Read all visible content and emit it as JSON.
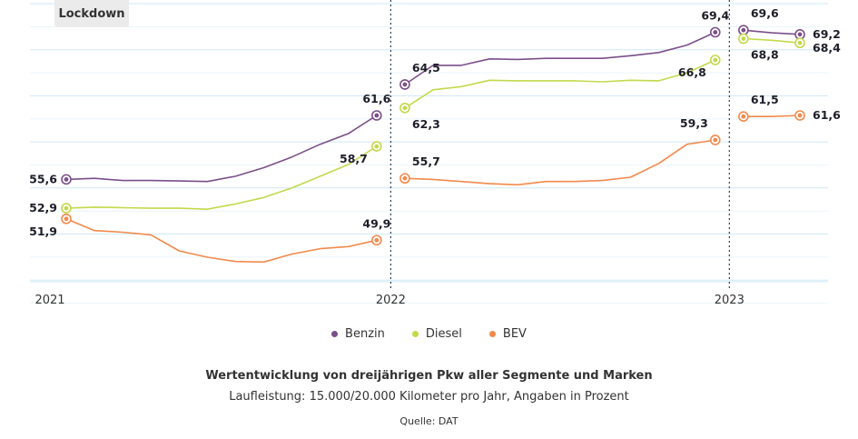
{
  "annotation": {
    "lockdown": "Lockdown"
  },
  "chart_data": {
    "type": "line",
    "title": "Wertentwicklung von dreijährigen Pkw aller Segmente und Marken",
    "subtitle": "Laufleistung: 15.000/20.000 Kilometer pro Jahr, Angaben in Prozent",
    "source": "Quelle: DAT",
    "x_ticks": [
      {
        "label": "2021",
        "x": 0
      },
      {
        "label": "2022",
        "x": 12
      },
      {
        "label": "2023",
        "x": 24
      }
    ],
    "ylim": [
      46,
      72
    ],
    "year_dividers": [
      12,
      24
    ],
    "series": [
      {
        "name": "Benzin",
        "color": "#7b4f8a",
        "segments": [
          {
            "x": [
              0,
              1,
              2,
              3,
              4,
              5,
              6,
              7,
              8,
              9,
              10,
              11
            ],
            "y": [
              55.6,
              55.7,
              55.5,
              55.5,
              55.45,
              55.4,
              55.9,
              56.7,
              57.7,
              58.9,
              59.9,
              61.6
            ]
          },
          {
            "x": [
              12,
              13,
              14,
              15,
              16,
              17,
              18,
              19,
              20,
              21,
              22,
              23
            ],
            "y": [
              64.5,
              66.3,
              66.3,
              66.9,
              66.85,
              66.95,
              66.95,
              66.95,
              67.2,
              67.5,
              68.2,
              69.4
            ]
          },
          {
            "x": [
              24,
              25,
              26
            ],
            "y": [
              69.6,
              69.35,
              69.2
            ]
          }
        ],
        "labels": [
          {
            "text": "55,6",
            "x": 0,
            "y": 55.6,
            "pos": "left"
          },
          {
            "text": "61,6",
            "x": 11,
            "y": 61.6,
            "pos": "above"
          },
          {
            "text": "64,5",
            "x": 12,
            "y": 64.5,
            "pos": "above-right"
          },
          {
            "text": "69,4",
            "x": 23,
            "y": 69.4,
            "pos": "above"
          },
          {
            "text": "69,6",
            "x": 24,
            "y": 69.6,
            "pos": "above-right"
          },
          {
            "text": "69,2",
            "x": 26,
            "y": 69.2,
            "pos": "right"
          }
        ]
      },
      {
        "name": "Diesel",
        "color": "#c3d94c",
        "segments": [
          {
            "x": [
              0,
              1,
              2,
              3,
              4,
              5,
              6,
              7,
              8,
              9,
              10,
              11
            ],
            "y": [
              52.9,
              53.0,
              52.95,
              52.9,
              52.9,
              52.8,
              53.3,
              53.9,
              54.8,
              55.9,
              57.0,
              58.7
            ]
          },
          {
            "x": [
              12,
              13,
              14,
              15,
              16,
              17,
              18,
              19,
              20,
              21,
              22,
              23
            ],
            "y": [
              62.3,
              64.0,
              64.3,
              64.9,
              64.85,
              64.85,
              64.85,
              64.75,
              64.9,
              64.85,
              65.6,
              66.8
            ]
          },
          {
            "x": [
              24,
              25,
              26
            ],
            "y": [
              68.8,
              68.65,
              68.4
            ]
          }
        ],
        "labels": [
          {
            "text": "52,9",
            "x": 0,
            "y": 52.9,
            "pos": "left"
          },
          {
            "text": "58,7",
            "x": 11,
            "y": 58.7,
            "pos": "below-left"
          },
          {
            "text": "62,3",
            "x": 12,
            "y": 62.3,
            "pos": "below-right"
          },
          {
            "text": "66,8",
            "x": 23,
            "y": 66.8,
            "pos": "below-left"
          },
          {
            "text": "68,8",
            "x": 24,
            "y": 68.8,
            "pos": "below-right"
          },
          {
            "text": "68,4",
            "x": 26,
            "y": 68.4,
            "pos": "right-below"
          }
        ]
      },
      {
        "name": "BEV",
        "color": "#f28a4c",
        "segments": [
          {
            "x": [
              0,
              1,
              2,
              3,
              4,
              5,
              6,
              7,
              8,
              9,
              10,
              11
            ],
            "y": [
              51.9,
              50.8,
              50.65,
              50.4,
              48.9,
              48.3,
              47.9,
              47.85,
              48.6,
              49.1,
              49.3,
              49.9
            ]
          },
          {
            "x": [
              12,
              13,
              14,
              15,
              16,
              17,
              18,
              19,
              20,
              21,
              22,
              23
            ],
            "y": [
              55.7,
              55.6,
              55.4,
              55.2,
              55.1,
              55.4,
              55.4,
              55.5,
              55.8,
              57.1,
              58.9,
              59.3
            ]
          },
          {
            "x": [
              24,
              25,
              26
            ],
            "y": [
              61.5,
              61.5,
              61.6
            ]
          }
        ],
        "labels": [
          {
            "text": "51,9",
            "x": 0,
            "y": 51.9,
            "pos": "below-left"
          },
          {
            "text": "49,9",
            "x": 11,
            "y": 49.9,
            "pos": "above"
          },
          {
            "text": "55,7",
            "x": 12,
            "y": 55.7,
            "pos": "above-right"
          },
          {
            "text": "59,3",
            "x": 23,
            "y": 59.3,
            "pos": "above-left"
          },
          {
            "text": "61,5",
            "x": 24,
            "y": 61.5,
            "pos": "above-right"
          },
          {
            "text": "61,6",
            "x": 26,
            "y": 61.6,
            "pos": "right"
          }
        ]
      }
    ]
  }
}
